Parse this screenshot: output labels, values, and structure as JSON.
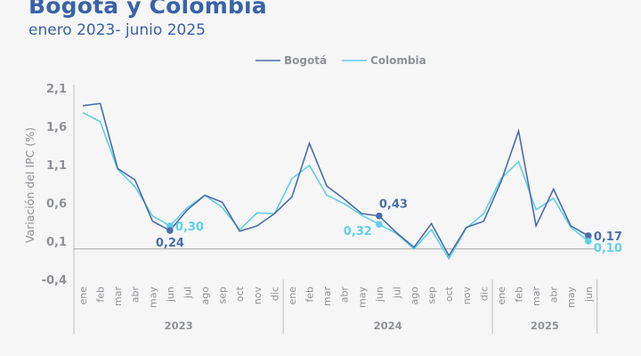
{
  "header": {
    "title": "Bogotá y Colombia",
    "subtitle": "enero 2023- junio 2025"
  },
  "chart_data": {
    "type": "line",
    "title": "Bogotá y Colombia",
    "subtitle": "enero 2023- junio 2025",
    "xlabel": "",
    "ylabel": "Variación del IPC (%)",
    "ylim": [
      -0.4,
      2.1
    ],
    "yticks": [
      "2,1",
      "1,6",
      "1,1",
      "0,6",
      "0,1",
      "-0,4"
    ],
    "ytick_values": [
      2.1,
      1.6,
      1.1,
      0.6,
      0.1,
      -0.4
    ],
    "grid": false,
    "legend_position": "top-center",
    "categories": [
      "ene",
      "feb",
      "mar",
      "abr",
      "may",
      "jun",
      "jul",
      "ago",
      "sep",
      "oct",
      "nov",
      "dic",
      "ene",
      "feb",
      "mar",
      "abr",
      "may",
      "jun",
      "jul",
      "ago",
      "sep",
      "oct",
      "nov",
      "dic",
      "ene",
      "feb",
      "mar",
      "abr",
      "may",
      "jun"
    ],
    "year_groups": [
      {
        "label": "2023",
        "count": 12
      },
      {
        "label": "2024",
        "count": 12
      },
      {
        "label": "2025",
        "count": 6
      }
    ],
    "series": [
      {
        "name": "Bogotá",
        "color": "#4a6ea9",
        "values": [
          1.87,
          1.9,
          1.05,
          0.9,
          0.36,
          0.24,
          0.51,
          0.7,
          0.61,
          0.23,
          0.3,
          0.46,
          0.68,
          1.38,
          0.82,
          0.65,
          0.46,
          0.43,
          0.21,
          0.02,
          0.33,
          -0.09,
          0.28,
          0.36,
          0.88,
          1.54,
          0.3,
          0.78,
          0.3,
          0.17
        ]
      },
      {
        "name": "Colombia",
        "color": "#5fd0ea",
        "values": [
          1.78,
          1.66,
          1.04,
          0.81,
          0.43,
          0.3,
          0.54,
          0.7,
          0.54,
          0.25,
          0.47,
          0.46,
          0.92,
          1.09,
          0.7,
          0.59,
          0.44,
          0.32,
          0.2,
          0.0,
          0.25,
          -0.13,
          0.27,
          0.46,
          0.92,
          1.14,
          0.51,
          0.66,
          0.28,
          0.1
        ]
      }
    ],
    "annotations": [
      {
        "series": "Colombia",
        "index": 5,
        "text": "0,30",
        "placement": "right"
      },
      {
        "series": "Bogotá",
        "index": 5,
        "text": "0,24",
        "placement": "below"
      },
      {
        "series": "Bogotá",
        "index": 17,
        "text": "0,43",
        "placement": "above"
      },
      {
        "series": "Colombia",
        "index": 17,
        "text": "0,32",
        "placement": "left-below"
      },
      {
        "series": "Bogotá",
        "index": 29,
        "text": "0,17",
        "placement": "right"
      },
      {
        "series": "Colombia",
        "index": 29,
        "text": "0,10",
        "placement": "right-below"
      }
    ]
  }
}
